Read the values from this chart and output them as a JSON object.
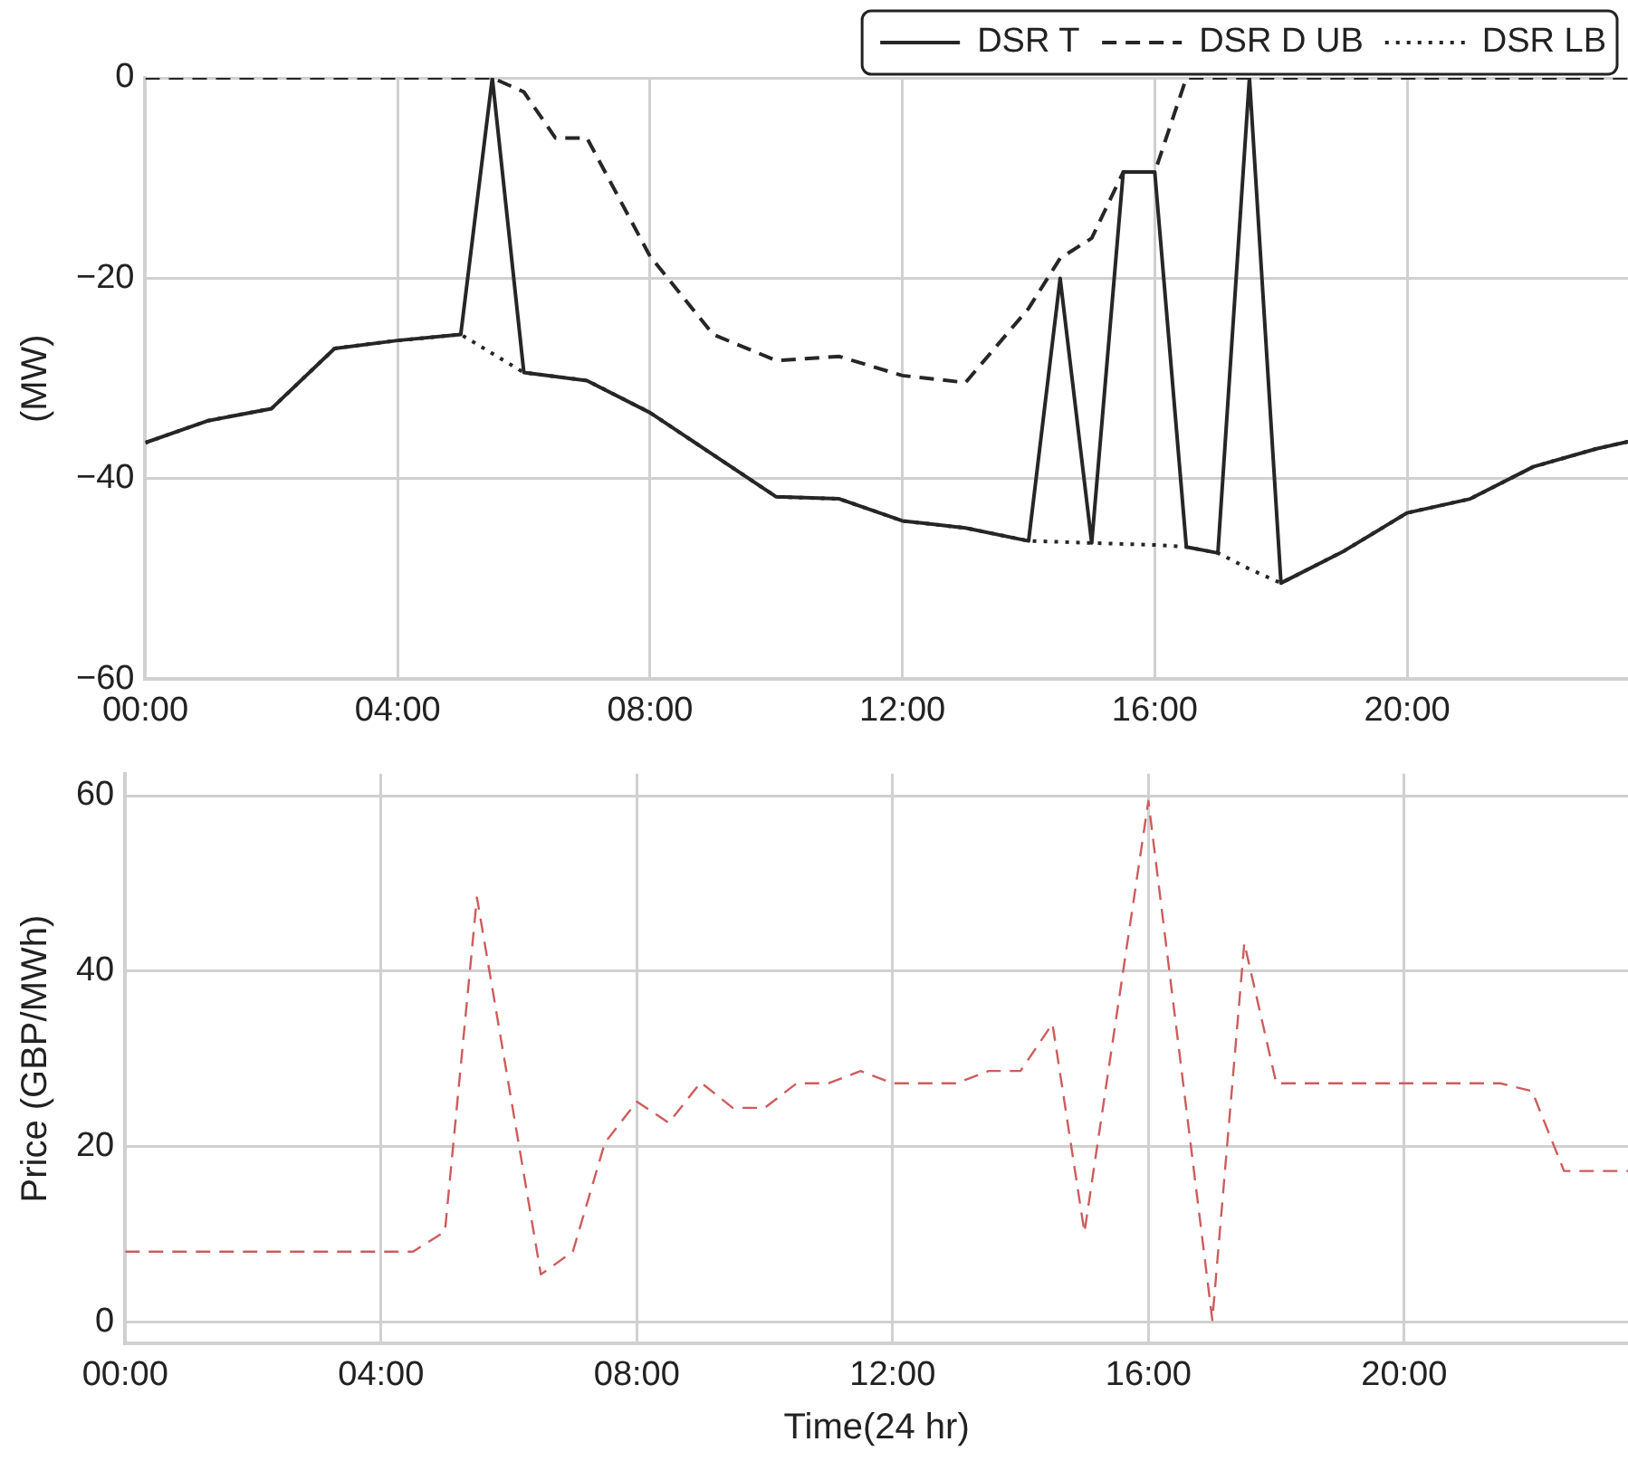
{
  "chart_data": [
    {
      "type": "line",
      "ylabel": "(MW)",
      "legend": "top right",
      "grid": true,
      "xlim": [
        0,
        23.5
      ],
      "xticks": [
        {
          "value": 0,
          "label": "00:00"
        },
        {
          "value": 4,
          "label": "04:00"
        },
        {
          "value": 8,
          "label": "08:00"
        },
        {
          "value": 12,
          "label": "12:00"
        },
        {
          "value": 16,
          "label": "16:00"
        },
        {
          "value": 20,
          "label": "20:00"
        }
      ],
      "ylim": [
        -60,
        0
      ],
      "yticks": [
        -60,
        -40,
        -20,
        0
      ],
      "series": [
        {
          "name": "DSR T",
          "color": "#262626",
          "line_style": "solid",
          "x": [
            0,
            1,
            2,
            3,
            4,
            5,
            5.5,
            6,
            7,
            8,
            9,
            10,
            11,
            12,
            13,
            14,
            14.5,
            15,
            15.5,
            16,
            16.5,
            17,
            17.5,
            18,
            19,
            20,
            21,
            22,
            23,
            23.5
          ],
          "values": [
            -36.4,
            -34.2,
            -33,
            -27,
            -26.2,
            -25.6,
            0,
            -29.4,
            -30.2,
            -33.4,
            -37.6,
            -41.8,
            -42,
            -44.2,
            -44.9,
            -46.2,
            -20,
            -46.4,
            -9.4,
            -9.4,
            -46.8,
            -47.4,
            0,
            -50.4,
            -47.2,
            -43.4,
            -42,
            -38.8,
            -37,
            -36.3
          ]
        },
        {
          "name": "DSR D UB",
          "color": "#262626",
          "line_style": "dashed",
          "x": [
            0,
            5,
            5.5,
            6,
            6.5,
            7,
            8,
            9,
            10,
            11,
            12,
            13,
            14,
            14.5,
            15,
            15.5,
            16,
            16.5,
            17,
            18,
            20,
            22,
            23.5
          ],
          "values": [
            0,
            0,
            0,
            -1.4,
            -6,
            -6,
            -17.8,
            -25.6,
            -28.2,
            -27.8,
            -29.7,
            -30.4,
            -23,
            -18,
            -16,
            -9.4,
            -9.4,
            0,
            0,
            0,
            0,
            0,
            0
          ]
        },
        {
          "name": "DSR LB",
          "color": "#262626",
          "line_style": "dotted",
          "x": [
            0,
            1,
            2,
            3,
            4,
            5,
            5.5,
            6,
            7,
            8,
            9,
            10,
            11,
            12,
            13,
            14,
            14.5,
            15,
            15.5,
            16,
            16.5,
            17,
            17.5,
            18,
            19,
            20,
            21,
            22,
            23,
            23.5
          ],
          "values": [
            -36.4,
            -34.2,
            -33,
            -27,
            -26.2,
            -25.6,
            -27.5,
            -29.4,
            -30.2,
            -33.4,
            -37.6,
            -41.8,
            -42,
            -44.2,
            -44.9,
            -46.2,
            -46.3,
            -46.4,
            -46.5,
            -46.6,
            -46.8,
            -47.4,
            -49,
            -50.4,
            -47.2,
            -43.4,
            -42,
            -38.8,
            -37,
            -36.3
          ]
        }
      ]
    },
    {
      "type": "line",
      "xlabel": "Time(24 hr)",
      "ylabel": "Price (GBP/MWh)",
      "grid": true,
      "xlim": [
        0,
        23.5
      ],
      "xticks": [
        {
          "value": 0,
          "label": "00:00"
        },
        {
          "value": 4,
          "label": "04:00"
        },
        {
          "value": 8,
          "label": "08:00"
        },
        {
          "value": 12,
          "label": "12:00"
        },
        {
          "value": 16,
          "label": "16:00"
        },
        {
          "value": 20,
          "label": "20:00"
        }
      ],
      "ylim": [
        -2.5,
        62.5
      ],
      "yticks": [
        0,
        20,
        40,
        60
      ],
      "series": [
        {
          "color": "#cd5c5c",
          "line_style": "dashed",
          "x": [
            0,
            4.5,
            5,
            5.5,
            6.5,
            7,
            7.5,
            8,
            8.5,
            9,
            9.5,
            10,
            10.5,
            11,
            11.5,
            12,
            13,
            13.5,
            14,
            14.5,
            15,
            16,
            17,
            17.5,
            18,
            21.5,
            22,
            22.5,
            23.5
          ],
          "values": [
            8,
            8,
            10.3,
            48.4,
            5.4,
            8,
            20.4,
            25.1,
            22.7,
            27.3,
            24.4,
            24.4,
            27.2,
            27.2,
            28.6,
            27.2,
            27.2,
            28.6,
            28.6,
            34,
            10.2,
            59.4,
            0.2,
            43.2,
            27.2,
            27.2,
            26.3,
            17.2,
            17.2
          ]
        }
      ]
    }
  ]
}
